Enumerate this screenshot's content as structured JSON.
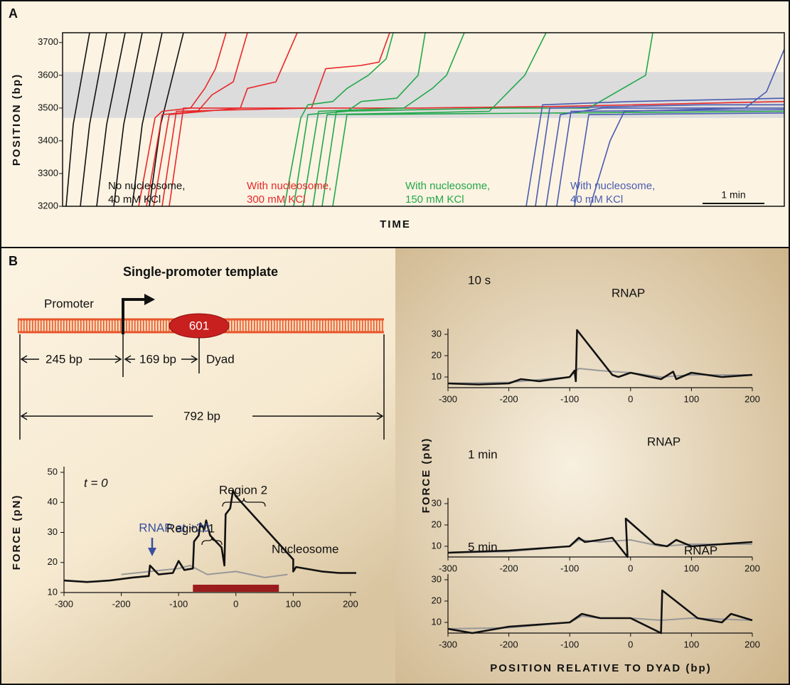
{
  "panel_a": {
    "label": "A",
    "chart_data": {
      "type": "line",
      "ylabel": "POSITION (bp)",
      "xlabel": "TIME",
      "xlim": [
        0,
        1015
      ],
      "ylim": [
        3200,
        3730
      ],
      "yticks": [
        3200,
        3300,
        3400,
        3500,
        3600,
        3700
      ],
      "band": [
        3470,
        3610
      ],
      "band_color": "#dcdcdc",
      "scale_bar": {
        "label": "1 min",
        "length": 87
      },
      "groups": [
        {
          "label": [
            "No nucleosome,",
            "40 mM KCl"
          ],
          "color": "#111111",
          "traces": [
            {
              "x": [
                5,
                15,
                38
              ],
              "y": [
                3200,
                3450,
                3730
              ]
            },
            {
              "x": [
                25,
                38,
                62
              ],
              "y": [
                3200,
                3450,
                3730
              ]
            },
            {
              "x": [
                48,
                62,
                88
              ],
              "y": [
                3200,
                3450,
                3730
              ]
            },
            {
              "x": [
                72,
                86,
                112
              ],
              "y": [
                3200,
                3450,
                3730
              ]
            },
            {
              "x": [
                98,
                112,
                140
              ],
              "y": [
                3200,
                3450,
                3730
              ]
            },
            {
              "x": [
                122,
                138,
                170
              ],
              "y": [
                3200,
                3450,
                3730
              ]
            }
          ]
        },
        {
          "label": [
            "With nucleosome,",
            "300 mM KCl"
          ],
          "color": "#e8282a",
          "traces": [
            {
              "x": [
                107,
                130,
                140,
                180,
                200,
                215,
                230
              ],
              "y": [
                3200,
                3470,
                3490,
                3500,
                3560,
                3620,
                3730
              ]
            },
            {
              "x": [
                118,
                140,
                190,
                210,
                240,
                260
              ],
              "y": [
                3200,
                3480,
                3490,
                3540,
                3580,
                3730
              ]
            },
            {
              "x": [
                128,
                150,
                250,
                260,
                300,
                330
              ],
              "y": [
                3200,
                3480,
                3500,
                3560,
                3580,
                3730
              ]
            },
            {
              "x": [
                140,
                160,
                350,
                370,
                420,
                445,
                460
              ],
              "y": [
                3200,
                3490,
                3500,
                3620,
                3630,
                3640,
                3730
              ]
            },
            {
              "x": [
                150,
                170,
                500,
                700,
                1015
              ],
              "y": [
                3200,
                3500,
                3500,
                3505,
                3520
              ]
            }
          ]
        },
        {
          "label": [
            "With nucleosome,",
            "150 mM KCl"
          ],
          "color": "#22a84a",
          "traces": [
            {
              "x": [
                312,
                335,
                345,
                380,
                400,
                430,
                455,
                465
              ],
              "y": [
                3200,
                3470,
                3510,
                3520,
                3560,
                3600,
                3650,
                3730
              ]
            },
            {
              "x": [
                325,
                345,
                400,
                420,
                470,
                500,
                510
              ],
              "y": [
                3200,
                3480,
                3490,
                3520,
                3530,
                3600,
                3730
              ]
            },
            {
              "x": [
                338,
                360,
                480,
                520,
                540,
                565
              ],
              "y": [
                3200,
                3490,
                3500,
                3560,
                3600,
                3730
              ]
            },
            {
              "x": [
                352,
                372,
                600,
                650,
                680
              ],
              "y": [
                3200,
                3480,
                3490,
                3600,
                3730
              ]
            },
            {
              "x": [
                365,
                385,
                620,
                740,
                820,
                830
              ],
              "y": [
                3200,
                3490,
                3500,
                3500,
                3600,
                3730
              ]
            },
            {
              "x": [
                380,
                400,
                700,
                1015
              ],
              "y": [
                3200,
                3480,
                3485,
                3490
              ]
            }
          ]
        },
        {
          "label": [
            "With nucleosome,",
            "40 mM KCl"
          ],
          "color": "#4a5cb0",
          "traces": [
            {
              "x": [
                652,
                675,
                800,
                1015
              ],
              "y": [
                3200,
                3510,
                3520,
                3530
              ]
            },
            {
              "x": [
                665,
                685,
                900,
                1015
              ],
              "y": [
                3200,
                3500,
                3510,
                3510
              ]
            },
            {
              "x": [
                680,
                700,
                760,
                1015
              ],
              "y": [
                3200,
                3480,
                3500,
                3500
              ]
            },
            {
              "x": [
                695,
                715,
                1015
              ],
              "y": [
                3200,
                3490,
                3495
              ]
            },
            {
              "x": [
                720,
                740,
                1015
              ],
              "y": [
                3200,
                3480,
                3485
              ]
            },
            {
              "x": [
                742,
                770,
                790,
                960,
                990,
                1015
              ],
              "y": [
                3200,
                3400,
                3490,
                3500,
                3550,
                3680
              ]
            }
          ]
        }
      ]
    }
  },
  "panel_b": {
    "label": "B",
    "template": {
      "title": "Single-promoter template",
      "promoter": "Promoter",
      "nucleosome": "601",
      "dyad": "Dyad",
      "dims": [
        "245 bp",
        "169 bp",
        "792 bp"
      ]
    },
    "right_ylabel": "FORCE (pN)",
    "right_xlabel": "POSITION RELATIVE TO DYAD (bp)",
    "charts": [
      {
        "type": "line",
        "ylabel": "FORCE (pN)",
        "annotations": [
          "t = 0",
          "RNAP at +20",
          "Region 1",
          "Region 2",
          "Nucleosome"
        ],
        "xlim": [
          -300,
          210
        ],
        "xticks": [
          -300,
          -200,
          -100,
          0,
          100,
          200
        ],
        "ylim": [
          10,
          50
        ],
        "yticks": [
          10,
          20,
          30,
          40,
          50
        ],
        "bar": [
          -75,
          75
        ],
        "bar_color": "#9b1c1c",
        "series": [
          {
            "color": "#999999",
            "x": [
              -200,
              -150,
              -100,
              -80,
              -50,
              0,
              50,
              90
            ],
            "y": [
              16,
              17,
              18,
              19,
              16,
              17,
              15,
              16
            ]
          },
          {
            "color": "#111111",
            "x": [
              -300,
              -260,
              -220,
              -180,
              -152,
              -150,
              -135,
              -110,
              -100,
              -90,
              -75,
              -73,
              -65,
              -62,
              -55,
              -52,
              -45,
              -25,
              -20,
              -18,
              -10,
              -5,
              0,
              100,
              100,
              105,
              150,
              180,
              210
            ],
            "y": [
              14,
              13.5,
              14,
              15,
              15.5,
              19,
              16,
              16.5,
              20.5,
              17.5,
              18,
              27,
              29,
              33,
              31,
              34,
              29,
              25,
              19,
              36,
              38,
              44,
              42,
              21,
              17,
              18.5,
              17,
              16.5,
              16.5
            ]
          }
        ]
      },
      {
        "type": "line",
        "annotations": [
          "10 s",
          "RNAP"
        ],
        "xlim": [
          -300,
          200
        ],
        "xticks": [
          -300,
          -200,
          -100,
          0,
          100,
          200
        ],
        "ylim": [
          5,
          35
        ],
        "yticks": [
          10,
          20,
          30
        ],
        "series": [
          {
            "color": "#999999",
            "x": [
              -300,
              -200,
              -100,
              -85,
              -50,
              0,
              50,
              100,
              200
            ],
            "y": [
              7,
              7.5,
              10,
              14,
              13,
              12,
              10,
              11,
              11
            ]
          },
          {
            "color": "#111111",
            "x": [
              -300,
              -250,
              -200,
              -180,
              -150,
              -100,
              -92,
              -90,
              -88,
              -30,
              -20,
              0,
              50,
              70,
              75,
              100,
              150,
              200
            ],
            "y": [
              7,
              6.5,
              7,
              9,
              8,
              10,
              13,
              8,
              32,
              11,
              10,
              12,
              9,
              12.5,
              9,
              12,
              10,
              11
            ]
          }
        ]
      },
      {
        "type": "line",
        "annotations": [
          "1 min",
          "RNAP"
        ],
        "xlim": [
          -300,
          200
        ],
        "xticks": [
          -300,
          -200,
          -100,
          0,
          100,
          200
        ],
        "ylim": [
          5,
          35
        ],
        "yticks": [
          10,
          20,
          30
        ],
        "series": [
          {
            "color": "#999999",
            "x": [
              -300,
              -200,
              -100,
              -85,
              -50,
              0,
              50,
              100,
              200
            ],
            "y": [
              7,
              7.5,
              10,
              13,
              12,
              13,
              10,
              11,
              11
            ]
          },
          {
            "color": "#111111",
            "x": [
              -300,
              -200,
              -100,
              -85,
              -75,
              -50,
              -30,
              -5,
              -8,
              40,
              60,
              75,
              100,
              150,
              200
            ],
            "y": [
              7,
              8,
              10,
              14,
              12,
              13,
              14,
              5,
              23,
              11,
              10,
              13,
              10,
              11,
              12
            ]
          }
        ]
      },
      {
        "type": "line",
        "annotations": [
          "5 min",
          "RNAP"
        ],
        "xlim": [
          -300,
          200
        ],
        "xticks": [
          -300,
          -200,
          -100,
          0,
          100,
          200
        ],
        "ylim": [
          5,
          35
        ],
        "yticks": [
          10,
          20,
          30
        ],
        "series": [
          {
            "color": "#999999",
            "x": [
              -300,
              -200,
              -100,
              -80,
              -50,
              0,
              50,
              100,
              200
            ],
            "y": [
              7,
              7.5,
              10,
              13,
              12,
              12,
              11,
              12,
              11
            ]
          },
          {
            "color": "#111111",
            "x": [
              -300,
              -260,
              -200,
              -100,
              -80,
              -50,
              0,
              50,
              52,
              110,
              150,
              165,
              200
            ],
            "y": [
              7,
              5,
              8,
              10,
              14,
              12,
              12,
              5,
              25,
              12,
              10,
              14,
              11
            ]
          }
        ]
      }
    ]
  }
}
